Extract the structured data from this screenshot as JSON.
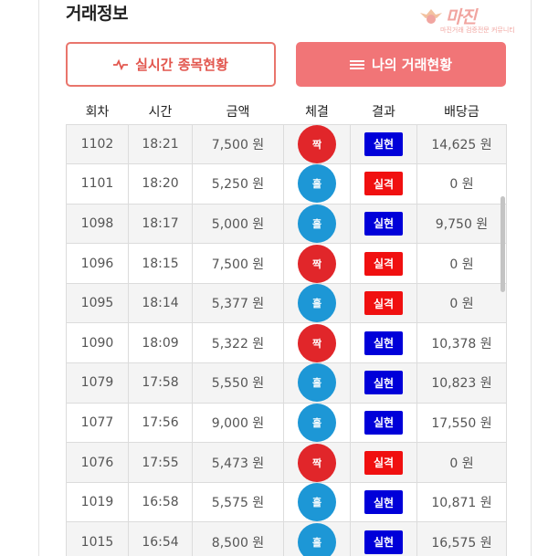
{
  "header": {
    "title": "거래정보",
    "logo_text": "마진",
    "logo_tagline": "마진거래 검증전문 커뮤니티"
  },
  "buttons": {
    "live_label": "실시간 종목현황",
    "mine_label": "나의 거래현황"
  },
  "table": {
    "headers": [
      "회차",
      "시간",
      "금액",
      "체결",
      "결과",
      "배당금"
    ],
    "rows": [
      {
        "round": "1102",
        "time": "18:21",
        "amount": "7,500 원",
        "pick": "짝",
        "pick_type": "jjak",
        "result": "실현",
        "result_type": "win",
        "payout": "14,625 원"
      },
      {
        "round": "1101",
        "time": "18:20",
        "amount": "5,250 원",
        "pick": "홀",
        "pick_type": "hol",
        "result": "실격",
        "result_type": "loss",
        "payout": "0 원"
      },
      {
        "round": "1098",
        "time": "18:17",
        "amount": "5,000 원",
        "pick": "홀",
        "pick_type": "hol",
        "result": "실현",
        "result_type": "win",
        "payout": "9,750 원"
      },
      {
        "round": "1096",
        "time": "18:15",
        "amount": "7,500 원",
        "pick": "짝",
        "pick_type": "jjak",
        "result": "실격",
        "result_type": "loss",
        "payout": "0 원"
      },
      {
        "round": "1095",
        "time": "18:14",
        "amount": "5,377 원",
        "pick": "홀",
        "pick_type": "hol",
        "result": "실격",
        "result_type": "loss",
        "payout": "0 원"
      },
      {
        "round": "1090",
        "time": "18:09",
        "amount": "5,322 원",
        "pick": "짝",
        "pick_type": "jjak",
        "result": "실현",
        "result_type": "win",
        "payout": "10,378 원"
      },
      {
        "round": "1079",
        "time": "17:58",
        "amount": "5,550 원",
        "pick": "홀",
        "pick_type": "hol",
        "result": "실현",
        "result_type": "win",
        "payout": "10,823 원"
      },
      {
        "round": "1077",
        "time": "17:56",
        "amount": "9,000 원",
        "pick": "홀",
        "pick_type": "hol",
        "result": "실현",
        "result_type": "win",
        "payout": "17,550 원"
      },
      {
        "round": "1076",
        "time": "17:55",
        "amount": "5,473 원",
        "pick": "짝",
        "pick_type": "jjak",
        "result": "실격",
        "result_type": "loss",
        "payout": "0 원"
      },
      {
        "round": "1019",
        "time": "16:58",
        "amount": "5,575 원",
        "pick": "홀",
        "pick_type": "hol",
        "result": "실현",
        "result_type": "win",
        "payout": "10,871 원"
      },
      {
        "round": "1015",
        "time": "16:54",
        "amount": "8,500 원",
        "pick": "홀",
        "pick_type": "hol",
        "result": "실현",
        "result_type": "win",
        "payout": "16,575 원"
      }
    ]
  },
  "colors": {
    "jjak": "#e1262a",
    "hol": "#1d97d6",
    "win": "#0000d9",
    "loss": "#f01010",
    "accent": "#f17577"
  },
  "icons": {
    "live_button_icon": "pulse-icon",
    "mine_button_icon": "menu-lines-icon",
    "logo_icon": "eagle-emblem-icon"
  }
}
